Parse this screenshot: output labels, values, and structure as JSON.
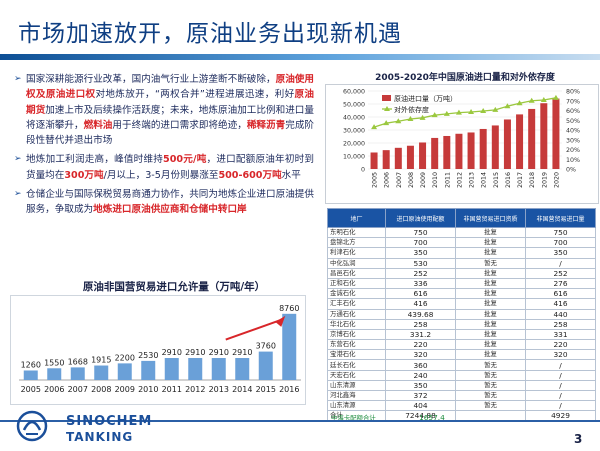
{
  "slide": {
    "title": "市场加速放开，原油业务出现新机遇",
    "page_number": "3"
  },
  "bullets": [
    {
      "segments": [
        {
          "t": "国家深耕能源行业改革，国内油气行业上游垄断不断破除，",
          "hl": false
        },
        {
          "t": "原油使用权及原油进口权",
          "hl": true
        },
        {
          "t": "对地炼放开，“两权合并”进程进展迅速，利好",
          "hl": false
        },
        {
          "t": "原油期货",
          "hl": true
        },
        {
          "t": "加速上市及后续操作活跃度；未来，地炼原油加工比例和进口量将逐渐攀升，",
          "hl": false
        },
        {
          "t": "燃料油",
          "hl": true
        },
        {
          "t": "用于终端的进口需求即将绝迹，",
          "hl": false
        },
        {
          "t": "稀释沥青",
          "hl": true
        },
        {
          "t": "完成阶段性替代并退出市场",
          "hl": false
        }
      ]
    },
    {
      "segments": [
        {
          "t": "地炼加工利润走高，峰值时维持",
          "hl": false
        },
        {
          "t": "500元/吨",
          "hl": true
        },
        {
          "t": "，进口配额原油年初时到货量均在",
          "hl": false
        },
        {
          "t": "300万吨",
          "hl": true
        },
        {
          "t": "/月以上，3-5月份则暴涨至",
          "hl": false
        },
        {
          "t": "500-600万吨",
          "hl": true
        },
        {
          "t": "水平",
          "hl": false
        }
      ]
    },
    {
      "segments": [
        {
          "t": "仓储企业与国际保税贸易商通力协作，共同为地炼企业进口原油提供服务，争取成为",
          "hl": false
        },
        {
          "t": "地炼进口原油供应商和仓储中转口岸",
          "hl": true
        }
      ]
    }
  ],
  "left_chart_title": "原油非国营贸易进口允许量（万吨/年）",
  "right_chart_title": "2005-2020年中国原油进口量和对外依存度",
  "chart_data": [
    {
      "type": "bar",
      "title": "原油非国营贸易进口允许量（万吨/年）",
      "categories": [
        "2005",
        "2006",
        "2007",
        "2008",
        "2009",
        "2010",
        "2011",
        "2012",
        "2013",
        "2014",
        "2015",
        "2016"
      ],
      "values": [
        1260,
        1550,
        1668,
        1915,
        2200,
        2530,
        2910,
        2910,
        2910,
        2910,
        3760,
        8760
      ],
      "annotation": "arrow from 2015 to 2016 (red)"
    },
    {
      "type": "bar",
      "title": "2005-2020年中国原油进口量和对外依存度",
      "categories": [
        "2005",
        "2006",
        "2007",
        "2008",
        "2009",
        "2010",
        "2011",
        "2012",
        "2013",
        "2014",
        "2015",
        "2016",
        "2017",
        "2018",
        "2019",
        "2020"
      ],
      "series": [
        {
          "name": "原油进口量（万吨）",
          "type": "bar",
          "axis": "left",
          "values": [
            12700,
            14500,
            16300,
            17900,
            20400,
            23900,
            25400,
            27100,
            28100,
            30800,
            33500,
            38100,
            42000,
            46200,
            50600,
            54200
          ]
        },
        {
          "name": "对外依存度",
          "type": "line",
          "axis": "right",
          "values": [
            42.9,
            47.0,
            49.0,
            51.3,
            52.5,
            55.2,
            56.5,
            57.8,
            58.5,
            59.5,
            60.6,
            64.4,
            67.4,
            70.0,
            70.8,
            73.0
          ]
        }
      ],
      "y_left": {
        "min": 0,
        "max": 60000,
        "ticks": [
          "0",
          "10,000",
          "20,000",
          "30,000",
          "40,000",
          "50,000",
          "60,000"
        ]
      },
      "y_right": {
        "min": 0,
        "max": 80,
        "ticks": [
          "0%",
          "10%",
          "20%",
          "30%",
          "40%",
          "50%",
          "60%",
          "70%",
          "80%"
        ]
      },
      "legend_position": "top-left"
    }
  ],
  "table": {
    "headers": [
      "地厂",
      "进口原油使用配额",
      "非国营贸易进口资质",
      "非国营贸易进口量"
    ],
    "rows": [
      [
        "东明石化",
        "750",
        "批复",
        "750"
      ],
      [
        "盘锦北方",
        "700",
        "批复",
        "700"
      ],
      [
        "利津石化",
        "350",
        "批复",
        "350"
      ],
      [
        "中化弘润",
        "530",
        "暂无",
        "/"
      ],
      [
        "昌邑石化",
        "252",
        "批复",
        "252"
      ],
      [
        "正和石化",
        "336",
        "批复",
        "276"
      ],
      [
        "金诚石化",
        "616",
        "批复",
        "616"
      ],
      [
        "汇丰石化",
        "416",
        "批复",
        "416"
      ],
      [
        "万通石化",
        "439.68",
        "批复",
        "440"
      ],
      [
        "华北石化",
        "258",
        "批复",
        "258"
      ],
      [
        "京博石化",
        "331.2",
        "批复",
        "331"
      ],
      [
        "东营石化",
        "220",
        "批复",
        "220"
      ],
      [
        "宝港石化",
        "320",
        "批复",
        "320"
      ],
      [
        "廷长石化",
        "360",
        "暂无",
        "/"
      ],
      [
        "天宏石化",
        "240",
        "暂无",
        "/"
      ],
      [
        "山东清源",
        "350",
        "暂无",
        "/"
      ],
      [
        "河北鑫海",
        "372",
        "暂无",
        "/"
      ],
      [
        "山东清源",
        "404",
        "暂无",
        "/"
      ],
      [
        "合计",
        "7244.88",
        "",
        "4929"
      ]
    ],
    "summary_label": "中海卡配额合计",
    "summary_value": "1657.4"
  },
  "logo": {
    "line1": "SINOCHEM",
    "line2": "TANKING"
  },
  "colors": {
    "brand_blue": "#1b4f9a",
    "highlight_red": "#d8262a",
    "left_bar": "#6aa0d8",
    "right_bar": "#c63a3a",
    "line_green": "#9bc83f"
  }
}
